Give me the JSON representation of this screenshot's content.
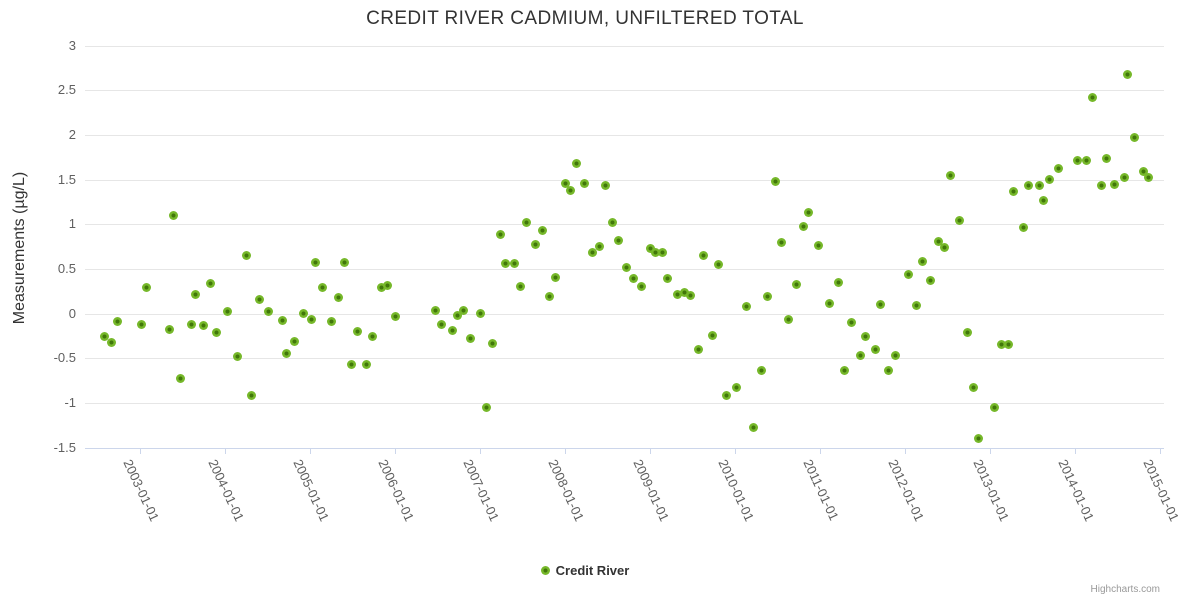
{
  "chart": {
    "credit": "Highcharts.com"
  },
  "colors": {
    "marker_outer": "#76b82a",
    "marker_inner": "#41770a",
    "gridline": "#e6e6e6",
    "axis_line": "#ccd6eb",
    "title_text": "#333333",
    "tick_label_text": "#606060",
    "legend_text": "#333333",
    "credit_text": "#999999"
  },
  "chart_data": {
    "type": "scatter",
    "title": "CREDIT RIVER CADMIUM, UNFILTERED TOTAL",
    "xlabel": "",
    "ylabel": "Measurements (µg/L)",
    "ylim": [
      -1.5,
      3
    ],
    "xlim_decimal_years": [
      2002.35,
      2015.06
    ],
    "grid": true,
    "legend_position": "bottom-center",
    "y_ticks": [
      {
        "value": 3,
        "label": "3"
      },
      {
        "value": 2.5,
        "label": "2.5"
      },
      {
        "value": 2,
        "label": "2"
      },
      {
        "value": 1.5,
        "label": "1.5"
      },
      {
        "value": 1,
        "label": "1"
      },
      {
        "value": 0.5,
        "label": "0.5"
      },
      {
        "value": 0,
        "label": "0"
      },
      {
        "value": -0.5,
        "label": "-0.5"
      },
      {
        "value": -1,
        "label": "-1"
      },
      {
        "value": -1.5,
        "label": "-1.5"
      }
    ],
    "x_ticks": [
      {
        "year": 2003,
        "label": "2003-01-01"
      },
      {
        "year": 2004,
        "label": "2004-01-01"
      },
      {
        "year": 2005,
        "label": "2005-01-01"
      },
      {
        "year": 2006,
        "label": "2006-01-01"
      },
      {
        "year": 2007,
        "label": "2007-01-01"
      },
      {
        "year": 2008,
        "label": "2008-01-01"
      },
      {
        "year": 2009,
        "label": "2009-01-01"
      },
      {
        "year": 2010,
        "label": "2010-01-01"
      },
      {
        "year": 2011,
        "label": "2011-01-01"
      },
      {
        "year": 2012,
        "label": "2012-01-01"
      },
      {
        "year": 2013,
        "label": "2013-01-01"
      },
      {
        "year": 2014,
        "label": "2014-01-01"
      },
      {
        "year": 2015,
        "label": "2015-01-01"
      }
    ],
    "series": [
      {
        "name": "Credit River",
        "x_unit": "decimal_year",
        "points": [
          [
            2002.58,
            -0.26
          ],
          [
            2002.66,
            -0.32
          ],
          [
            2002.73,
            -0.09
          ],
          [
            2003.02,
            -0.12
          ],
          [
            2003.08,
            0.29
          ],
          [
            2003.35,
            -0.18
          ],
          [
            2003.39,
            1.1
          ],
          [
            2003.48,
            -0.73
          ],
          [
            2003.6,
            -0.12
          ],
          [
            2003.65,
            0.21
          ],
          [
            2003.75,
            -0.13
          ],
          [
            2003.83,
            0.34
          ],
          [
            2003.9,
            -0.21
          ],
          [
            2004.03,
            0.03
          ],
          [
            2004.15,
            -0.48
          ],
          [
            2004.25,
            0.65
          ],
          [
            2004.31,
            -0.91
          ],
          [
            2004.4,
            0.16
          ],
          [
            2004.51,
            0.03
          ],
          [
            2004.67,
            -0.08
          ],
          [
            2004.72,
            -0.44
          ],
          [
            2004.82,
            -0.31
          ],
          [
            2004.92,
            0.0
          ],
          [
            2005.02,
            -0.07
          ],
          [
            2005.07,
            0.57
          ],
          [
            2005.15,
            0.29
          ],
          [
            2005.25,
            -0.09
          ],
          [
            2005.33,
            0.18
          ],
          [
            2005.4,
            0.57
          ],
          [
            2005.49,
            -0.57
          ],
          [
            2005.56,
            -0.2
          ],
          [
            2005.66,
            -0.57
          ],
          [
            2005.73,
            -0.25
          ],
          [
            2005.84,
            0.29
          ],
          [
            2005.91,
            0.32
          ],
          [
            2006.01,
            -0.03
          ],
          [
            2006.47,
            0.04
          ],
          [
            2006.55,
            -0.12
          ],
          [
            2006.67,
            -0.19
          ],
          [
            2006.74,
            -0.02
          ],
          [
            2006.81,
            0.04
          ],
          [
            2006.89,
            -0.28
          ],
          [
            2007.0,
            0.0
          ],
          [
            2007.08,
            -1.05
          ],
          [
            2007.15,
            -0.33
          ],
          [
            2007.24,
            0.89
          ],
          [
            2007.3,
            0.56
          ],
          [
            2007.41,
            0.56
          ],
          [
            2007.47,
            0.31
          ],
          [
            2007.55,
            1.02
          ],
          [
            2007.65,
            0.77
          ],
          [
            2007.73,
            0.93
          ],
          [
            2007.82,
            0.19
          ],
          [
            2007.89,
            0.41
          ],
          [
            2008.0,
            1.46
          ],
          [
            2008.07,
            1.38
          ],
          [
            2008.14,
            1.68
          ],
          [
            2008.23,
            1.46
          ],
          [
            2008.32,
            0.68
          ],
          [
            2008.4,
            0.75
          ],
          [
            2008.47,
            1.44
          ],
          [
            2008.56,
            1.02
          ],
          [
            2008.63,
            0.82
          ],
          [
            2008.72,
            0.52
          ],
          [
            2008.81,
            0.4
          ],
          [
            2008.9,
            0.3
          ],
          [
            2009.0,
            0.73
          ],
          [
            2009.07,
            0.69
          ],
          [
            2009.15,
            0.69
          ],
          [
            2009.21,
            0.4
          ],
          [
            2009.32,
            0.21
          ],
          [
            2009.4,
            0.24
          ],
          [
            2009.47,
            0.2
          ],
          [
            2009.57,
            -0.4
          ],
          [
            2009.63,
            0.65
          ],
          [
            2009.73,
            -0.24
          ],
          [
            2009.81,
            0.55
          ],
          [
            2009.9,
            -0.92
          ],
          [
            2010.02,
            -0.83
          ],
          [
            2010.13,
            0.08
          ],
          [
            2010.22,
            -1.27
          ],
          [
            2010.31,
            -0.63
          ],
          [
            2010.38,
            0.19
          ],
          [
            2010.48,
            1.48
          ],
          [
            2010.55,
            0.8
          ],
          [
            2010.63,
            -0.06
          ],
          [
            2010.72,
            0.33
          ],
          [
            2010.8,
            0.98
          ],
          [
            2010.87,
            1.13
          ],
          [
            2010.98,
            0.76
          ],
          [
            2011.11,
            0.11
          ],
          [
            2011.22,
            0.35
          ],
          [
            2011.29,
            -0.64
          ],
          [
            2011.37,
            -0.1
          ],
          [
            2011.47,
            -0.47
          ],
          [
            2011.54,
            -0.25
          ],
          [
            2011.65,
            -0.4
          ],
          [
            2011.71,
            0.1
          ],
          [
            2011.8,
            -0.64
          ],
          [
            2011.89,
            -0.47
          ],
          [
            2012.04,
            0.44
          ],
          [
            2012.14,
            0.09
          ],
          [
            2012.21,
            0.59
          ],
          [
            2012.3,
            0.37
          ],
          [
            2012.39,
            0.81
          ],
          [
            2012.46,
            0.74
          ],
          [
            2012.54,
            1.55
          ],
          [
            2012.64,
            1.04
          ],
          [
            2012.73,
            -0.21
          ],
          [
            2012.8,
            -0.83
          ],
          [
            2012.87,
            -1.4
          ],
          [
            2013.05,
            -1.05
          ],
          [
            2013.14,
            -0.34
          ],
          [
            2013.22,
            -0.34
          ],
          [
            2013.28,
            1.37
          ],
          [
            2013.39,
            0.97
          ],
          [
            2013.45,
            1.44
          ],
          [
            2013.58,
            1.44
          ],
          [
            2013.63,
            1.27
          ],
          [
            2013.7,
            1.5
          ],
          [
            2013.81,
            1.63
          ],
          [
            2014.03,
            1.71
          ],
          [
            2014.13,
            1.71
          ],
          [
            2014.2,
            2.42
          ],
          [
            2014.31,
            1.43
          ],
          [
            2014.37,
            1.74
          ],
          [
            2014.46,
            1.45
          ],
          [
            2014.58,
            1.52
          ],
          [
            2014.62,
            2.68
          ],
          [
            2014.7,
            1.97
          ],
          [
            2014.8,
            1.59
          ],
          [
            2014.87,
            1.52
          ]
        ]
      }
    ]
  }
}
